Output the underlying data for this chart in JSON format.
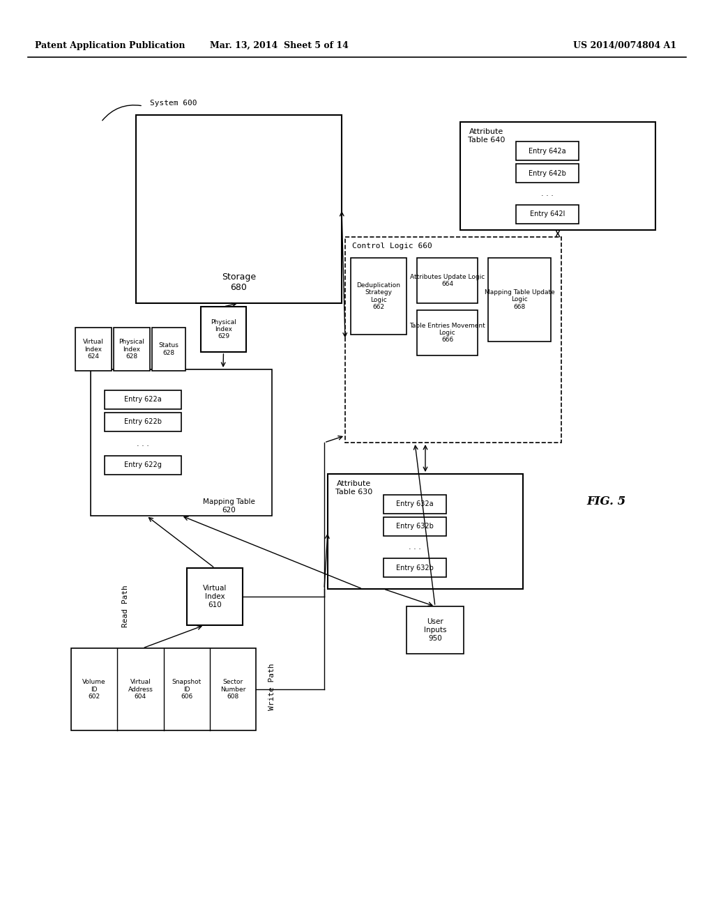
{
  "bg_color": "#ffffff",
  "header_left": "Patent Application Publication",
  "header_mid": "Mar. 13, 2014  Sheet 5 of 14",
  "header_right": "US 2014/0074804 A1",
  "fig_label": "FIG. 5"
}
